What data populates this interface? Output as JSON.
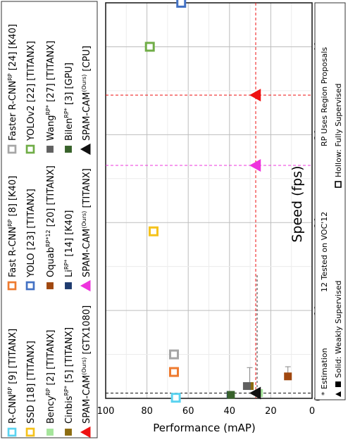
{
  "chart_data": {
    "type": "scatter",
    "orientation": "rotated-90-clockwise",
    "xlabel": "Performance (mAP)",
    "ylabel": "Speed (fps)",
    "xlim": [
      100,
      0
    ],
    "ylim": [
      0,
      45
    ],
    "x_ticks": [
      "100",
      "80",
      "60",
      "40",
      "20",
      "0"
    ],
    "y_ticks": [
      "0",
      "10",
      "20",
      "30",
      "40"
    ],
    "grid": true,
    "series": [
      {
        "name": "R-CNN",
        "sup": "RP",
        "suffix": " [9] [TITANX]",
        "color": "#5bd3f0",
        "marker": "square-hollow",
        "x": 66,
        "y": 0.07
      },
      {
        "name": "SSD",
        "sup": "",
        "suffix": " [18] [TITANX]",
        "color": "#f5c21b",
        "marker": "square-hollow",
        "x": 76.8,
        "y": 19
      },
      {
        "name": "Bency",
        "sup": "RP",
        "suffix": " [2] [TITANX]",
        "color": "#a5e59b",
        "marker": "square-solid",
        "x": 25.7,
        "y": 0.6
      },
      {
        "name": "Cinbis",
        "sup": "RP*",
        "suffix": " [5] [TITANX]",
        "color": "#8c6c10",
        "marker": "square-solid",
        "x": 30.2,
        "y": 1.4
      },
      {
        "name": "SPAM-CAM",
        "sup": "(Ours)",
        "suffix": " [GTX1080]",
        "color": "#ee1111",
        "marker": "triangle-solid",
        "x": 27.3,
        "y": 34.5
      },
      {
        "name": "Fast R-CNN",
        "sup": "RP",
        "suffix": " [8] [K40]",
        "color": "#ee7b30",
        "marker": "square-hollow",
        "x": 66.9,
        "y": 3
      },
      {
        "name": "YOLO",
        "sup": "",
        "suffix": " [23] [TITANX]",
        "color": "#4472c4",
        "marker": "square-hollow",
        "x": 63.4,
        "y": 45
      },
      {
        "name": "Oquab",
        "sup": "RP*12",
        "suffix": " [20] [TITANX]",
        "color": "#a0470f",
        "marker": "square-solid",
        "x": 11.7,
        "y": 2.5
      },
      {
        "name": "Li",
        "sup": "RP*",
        "suffix": " [14] [K40]",
        "color": "#1f3b6e",
        "marker": "square-solid",
        "x": 39.5,
        "y": 0.4
      },
      {
        "name": "SPAM-CAM",
        "sup": "(Ours)",
        "suffix": " [TITANX]",
        "color": "#ee33dd",
        "marker": "triangle-solid",
        "x": 27.3,
        "y": 26.5
      },
      {
        "name": "Faster R-CNN",
        "sup": "RP",
        "suffix": " [24] [K40]",
        "color": "#a6a6a6",
        "marker": "square-hollow",
        "x": 66.9,
        "y": 5
      },
      {
        "name": "YOLOv2",
        "sup": "",
        "suffix": " [22] [TITANX]",
        "color": "#70ad47",
        "marker": "square-hollow",
        "x": 78.6,
        "y": 40
      },
      {
        "name": "Wang",
        "sup": "RP*",
        "suffix": " [27] [TITANX]",
        "color": "#606060",
        "marker": "square-solid",
        "x": 31.6,
        "y": 1.4
      },
      {
        "name": "Bilen",
        "sup": "RP*",
        "suffix": " [3] [GPU]",
        "color": "#38622b",
        "marker": "square-solid",
        "x": 39.3,
        "y": 0.4
      },
      {
        "name": "SPAM-CAM",
        "sup": "(Ours)",
        "suffix": " [CPU]",
        "color": "#111111",
        "marker": "triangle-solid",
        "x": 27.3,
        "y": 0.6
      }
    ],
    "notes": {
      "estimation": "* Estimation",
      "voc": "12 Tested on VOC'12",
      "rp": "RP Uses Region Proposals",
      "solid": "Solid: Weakly Supervised",
      "hollow": "Hollow: Fully Supervised"
    }
  }
}
